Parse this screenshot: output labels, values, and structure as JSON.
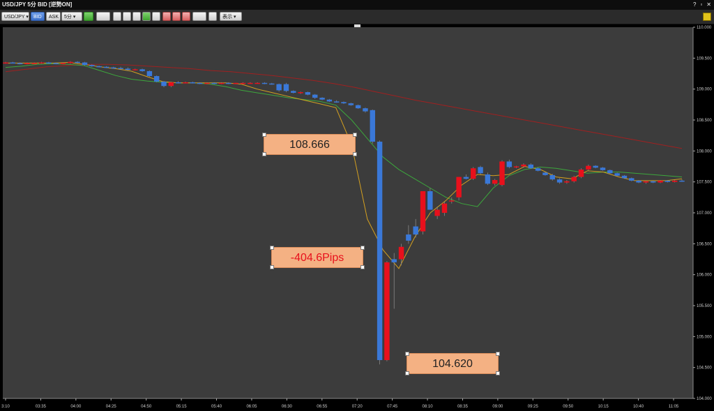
{
  "window": {
    "title": "USD/JPY 5分 BID [逆勢ON]",
    "help_glyph": "?",
    "min_glyph": "▫",
    "close_glyph": "✕"
  },
  "toolbar": {
    "symbol": "USD/JPY",
    "bid_label": "BID",
    "ask_label": "ASK",
    "interval": "5分",
    "display_label": "表示"
  },
  "callouts": {
    "high_label": "108.666",
    "pips_label": "-404.6Pips",
    "low_label": "104.620"
  },
  "colors": {
    "up": "#e8101c",
    "down": "#3a78d8",
    "ma_short": "#d4a020",
    "ma_mid": "#3ca83c",
    "ma_long": "#a02020",
    "bg": "#3c3c3c"
  },
  "chart_data": {
    "type": "candlestick",
    "ylim": [
      104.0,
      110.0
    ],
    "y_ticks": [
      "110.000",
      "109.500",
      "109.000",
      "108.500",
      "108.000",
      "107.500",
      "107.000",
      "106.500",
      "106.000",
      "105.500",
      "105.000",
      "104.500",
      "104.000"
    ],
    "x_ticks": [
      "3:10",
      "03:35",
      "04:00",
      "04:25",
      "04:50",
      "05:15",
      "05:40",
      "06:05",
      "06:30",
      "06:55",
      "07:20",
      "07:45",
      "08:10",
      "08:35",
      "09:00",
      "09:25",
      "09:50",
      "10:15",
      "10:40",
      "11:05"
    ],
    "candles": [
      [
        109.42,
        109.44,
        109.41,
        109.43
      ],
      [
        109.43,
        109.44,
        109.42,
        109.42
      ],
      [
        109.42,
        109.43,
        109.4,
        109.41
      ],
      [
        109.41,
        109.43,
        109.4,
        109.42
      ],
      [
        109.42,
        109.43,
        109.41,
        109.42
      ],
      [
        109.42,
        109.44,
        109.41,
        109.43
      ],
      [
        109.43,
        109.44,
        109.41,
        109.42
      ],
      [
        109.42,
        109.43,
        109.4,
        109.41
      ],
      [
        109.41,
        109.43,
        109.4,
        109.42
      ],
      [
        109.42,
        109.45,
        109.41,
        109.44
      ],
      [
        109.44,
        109.45,
        109.42,
        109.43
      ],
      [
        109.43,
        109.44,
        109.38,
        109.39
      ],
      [
        109.39,
        109.4,
        109.36,
        109.37
      ],
      [
        109.37,
        109.38,
        109.35,
        109.36
      ],
      [
        109.36,
        109.37,
        109.34,
        109.35
      ],
      [
        109.35,
        109.36,
        109.33,
        109.34
      ],
      [
        109.34,
        109.36,
        109.32,
        109.33
      ],
      [
        109.33,
        109.35,
        109.3,
        109.31
      ],
      [
        109.31,
        109.33,
        109.3,
        109.32
      ],
      [
        109.32,
        109.33,
        109.28,
        109.29
      ],
      [
        109.29,
        109.3,
        109.2,
        109.21
      ],
      [
        109.21,
        109.22,
        109.11,
        109.12
      ],
      [
        109.12,
        109.13,
        109.03,
        109.05
      ],
      [
        109.05,
        109.12,
        109.03,
        109.11
      ],
      [
        109.11,
        109.13,
        109.09,
        109.1
      ],
      [
        109.1,
        109.12,
        109.09,
        109.11
      ],
      [
        109.11,
        109.12,
        109.09,
        109.1
      ],
      [
        109.1,
        109.11,
        109.08,
        109.09
      ],
      [
        109.09,
        109.11,
        109.08,
        109.1
      ],
      [
        109.1,
        109.11,
        109.08,
        109.09
      ],
      [
        109.09,
        109.11,
        109.08,
        109.1
      ],
      [
        109.1,
        109.11,
        109.08,
        109.09
      ],
      [
        109.09,
        109.1,
        109.08,
        109.1
      ],
      [
        109.1,
        109.11,
        109.09,
        109.1
      ],
      [
        109.1,
        109.11,
        109.09,
        109.1
      ],
      [
        109.1,
        109.11,
        109.09,
        109.1
      ],
      [
        109.1,
        109.11,
        109.08,
        109.09
      ],
      [
        109.09,
        109.1,
        109.07,
        109.08
      ],
      [
        109.08,
        109.09,
        108.96,
        108.98
      ],
      [
        109.08,
        109.1,
        108.95,
        108.97
      ],
      [
        108.97,
        108.98,
        108.93,
        108.94
      ],
      [
        108.94,
        108.96,
        108.92,
        108.95
      ],
      [
        108.95,
        108.96,
        108.9,
        108.91
      ],
      [
        108.91,
        108.92,
        108.84,
        108.86
      ],
      [
        108.86,
        108.87,
        108.82,
        108.83
      ],
      [
        108.83,
        108.84,
        108.79,
        108.8
      ],
      [
        108.8,
        108.82,
        108.78,
        108.79
      ],
      [
        108.79,
        108.8,
        108.76,
        108.77
      ],
      [
        108.77,
        108.78,
        108.73,
        108.74
      ],
      [
        108.74,
        108.75,
        108.68,
        108.69
      ],
      [
        108.69,
        108.7,
        108.62,
        108.64
      ],
      [
        108.66,
        108.67,
        108.12,
        108.15
      ],
      [
        108.15,
        108.17,
        104.55,
        104.62
      ],
      [
        104.62,
        106.22,
        104.6,
        106.2
      ],
      [
        106.25,
        106.35,
        105.45,
        106.2
      ],
      [
        106.25,
        106.5,
        106.15,
        106.45
      ],
      [
        106.65,
        106.8,
        106.5,
        106.55
      ],
      [
        106.78,
        106.9,
        106.6,
        106.65
      ],
      [
        106.7,
        107.35,
        106.65,
        107.35
      ],
      [
        107.35,
        107.4,
        107.05,
        107.05
      ],
      [
        106.95,
        107.1,
        106.9,
        107.05
      ],
      [
        107.0,
        107.18,
        106.95,
        107.15
      ],
      [
        107.2,
        107.25,
        107.15,
        107.2
      ],
      [
        107.25,
        107.58,
        107.2,
        107.58
      ],
      [
        107.58,
        107.62,
        107.54,
        107.55
      ],
      [
        107.55,
        107.74,
        107.53,
        107.72
      ],
      [
        107.74,
        107.76,
        107.62,
        107.64
      ],
      [
        107.62,
        107.65,
        107.45,
        107.47
      ],
      [
        107.47,
        107.55,
        107.44,
        107.53
      ],
      [
        107.45,
        107.85,
        107.43,
        107.83
      ],
      [
        107.83,
        107.86,
        107.72,
        107.74
      ],
      [
        107.74,
        107.76,
        107.72,
        107.75
      ],
      [
        107.75,
        107.8,
        107.73,
        107.78
      ],
      [
        107.78,
        107.8,
        107.71,
        107.72
      ],
      [
        107.72,
        107.74,
        107.67,
        107.68
      ],
      [
        107.65,
        107.66,
        107.6,
        107.61
      ],
      [
        107.61,
        107.63,
        107.52,
        107.54
      ],
      [
        107.54,
        107.56,
        107.47,
        107.49
      ],
      [
        107.49,
        107.53,
        107.47,
        107.51
      ],
      [
        107.51,
        107.6,
        107.49,
        107.58
      ],
      [
        107.58,
        107.72,
        107.56,
        107.7
      ],
      [
        107.7,
        107.78,
        107.68,
        107.76
      ],
      [
        107.76,
        107.77,
        107.72,
        107.73
      ],
      [
        107.73,
        107.74,
        107.68,
        107.69
      ],
      [
        107.69,
        107.7,
        107.63,
        107.64
      ],
      [
        107.64,
        107.65,
        107.59,
        107.6
      ],
      [
        107.6,
        107.61,
        107.55,
        107.56
      ],
      [
        107.56,
        107.57,
        107.51,
        107.52
      ],
      [
        107.52,
        107.53,
        107.48,
        107.49
      ],
      [
        107.49,
        107.52,
        107.47,
        107.51
      ],
      [
        107.51,
        107.52,
        107.48,
        107.49
      ],
      [
        107.49,
        107.53,
        107.48,
        107.52
      ],
      [
        107.52,
        107.53,
        107.49,
        107.5
      ],
      [
        107.5,
        107.53,
        107.49,
        107.52
      ],
      [
        107.52,
        107.54,
        107.5,
        107.51
      ]
    ],
    "ma_short": [
      109.42,
      109.42,
      109.42,
      109.42,
      109.43,
      109.4,
      109.36,
      109.33,
      109.29,
      109.2,
      109.12,
      109.1,
      109.1,
      109.1,
      109.1,
      109.08,
      109.0,
      108.94,
      108.88,
      108.82,
      108.76,
      108.7,
      108.1,
      106.9,
      106.4,
      106.1,
      106.6,
      107.0,
      107.2,
      107.45,
      107.62,
      107.6,
      107.62,
      107.75,
      107.7,
      107.58,
      107.55,
      107.68,
      107.66,
      107.58,
      107.52,
      107.52,
      107.52,
      107.55
    ],
    "ma_mid": [
      109.35,
      109.37,
      109.4,
      109.41,
      109.4,
      109.38,
      109.3,
      109.22,
      109.16,
      109.13,
      109.11,
      109.1,
      109.1,
      109.08,
      109.04,
      108.98,
      108.94,
      108.9,
      108.86,
      108.83,
      108.8,
      108.74,
      108.5,
      108.2,
      107.9,
      107.7,
      107.55,
      107.4,
      107.25,
      107.15,
      107.1,
      107.4,
      107.6,
      107.7,
      107.74,
      107.72,
      107.68,
      107.64,
      107.66,
      107.66,
      107.64,
      107.62,
      107.6,
      107.58
    ],
    "ma_long": [
      109.28,
      109.32,
      109.36,
      109.38,
      109.4,
      109.4,
      109.39,
      109.37,
      109.35,
      109.33,
      109.3,
      109.28,
      109.25,
      109.22,
      109.18,
      109.14,
      109.09,
      109.03,
      108.96,
      108.89,
      108.82,
      108.76,
      108.7,
      108.64,
      108.58,
      108.52,
      108.46,
      108.4,
      108.34,
      108.28,
      108.22,
      108.16,
      108.1,
      108.04
    ]
  }
}
